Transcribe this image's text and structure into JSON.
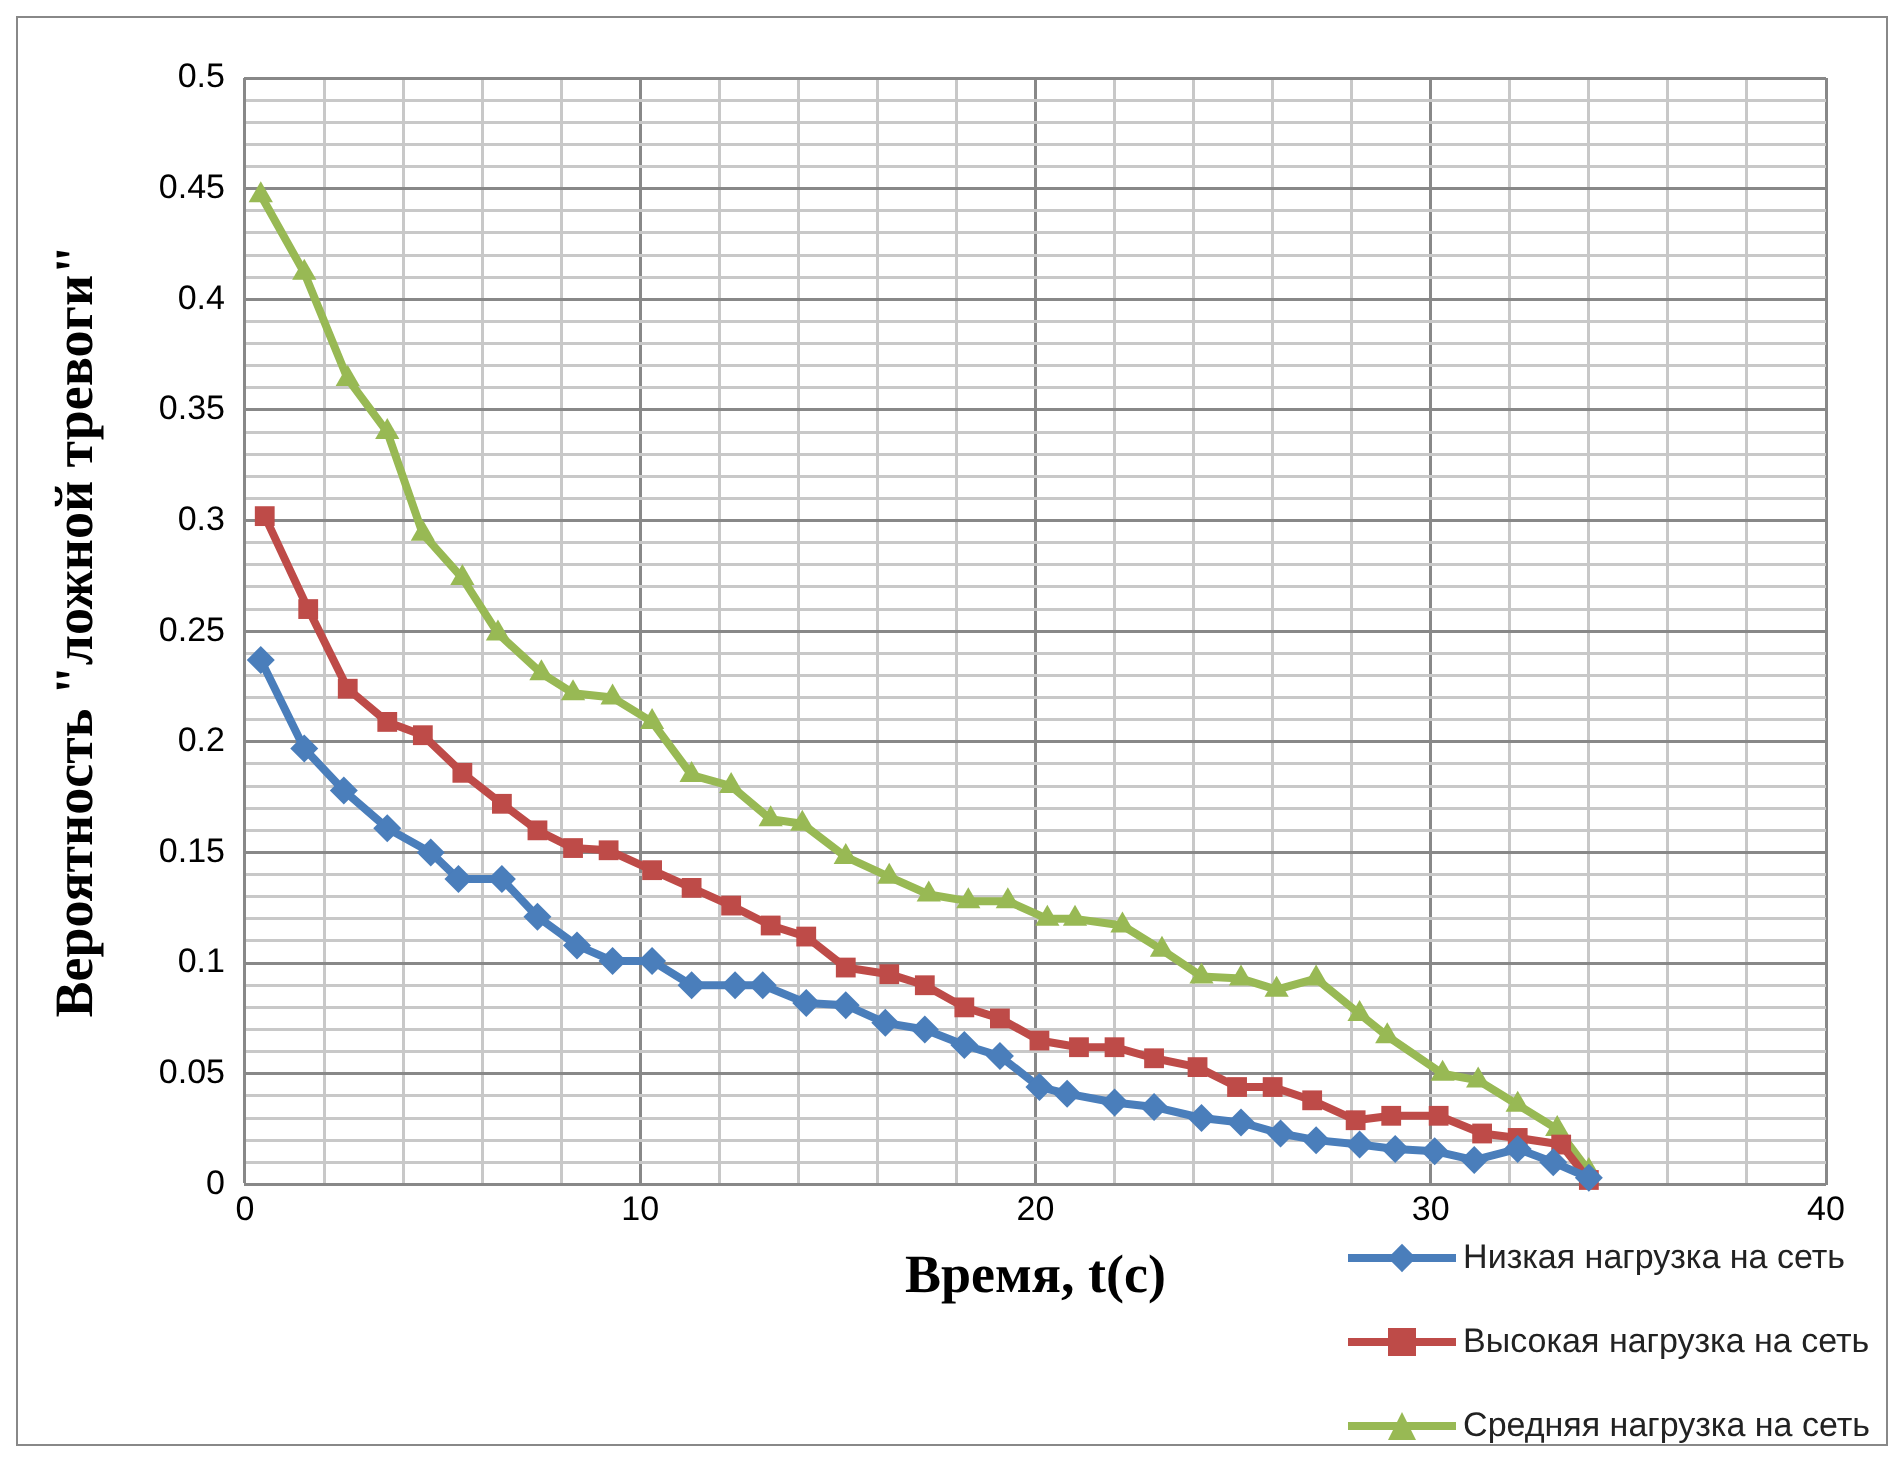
{
  "chart_data": {
    "type": "line",
    "xlabel": "Время, t(c)",
    "ylabel": "Вероятность \"ложной тревоги\"",
    "xlim": [
      0,
      40
    ],
    "xticks": [
      0,
      {
        "value": 2,
        "label": null
      },
      {
        "value": 4,
        "label": null
      },
      {
        "value": 6,
        "label": null
      },
      {
        "value": 8,
        "label": null
      },
      10,
      {
        "value": 12,
        "label": null
      },
      {
        "value": 14,
        "label": null
      },
      {
        "value": 16,
        "label": null
      },
      {
        "value": 18,
        "label": null
      },
      20,
      {
        "value": 22,
        "label": null
      },
      {
        "value": 24,
        "label": null
      },
      {
        "value": 26,
        "label": null
      },
      {
        "value": 28,
        "label": null
      },
      30,
      {
        "value": 32,
        "label": null
      },
      {
        "value": 34,
        "label": null
      },
      {
        "value": 36,
        "label": null
      },
      {
        "value": 38,
        "label": null
      },
      40
    ],
    "ylim": [
      0,
      0.5
    ],
    "yticks": [
      0,
      {
        "value": 0.01,
        "label": null
      },
      {
        "value": 0.02,
        "label": null
      },
      {
        "value": 0.03,
        "label": null
      },
      {
        "value": 0.04,
        "label": null
      },
      0.05,
      {
        "value": 0.06,
        "label": null
      },
      {
        "value": 0.07,
        "label": null
      },
      {
        "value": 0.08,
        "label": null
      },
      {
        "value": 0.09,
        "label": null
      },
      0.1,
      {
        "value": 0.11,
        "label": null
      },
      {
        "value": 0.12,
        "label": null
      },
      {
        "value": 0.13,
        "label": null
      },
      {
        "value": 0.14,
        "label": null
      },
      0.15,
      {
        "value": 0.16,
        "label": null
      },
      {
        "value": 0.17,
        "label": null
      },
      {
        "value": 0.18,
        "label": null
      },
      {
        "value": 0.19,
        "label": null
      },
      0.2,
      {
        "value": 0.21,
        "label": null
      },
      {
        "value": 0.22,
        "label": null
      },
      {
        "value": 0.23,
        "label": null
      },
      {
        "value": 0.24,
        "label": null
      },
      0.25,
      {
        "value": 0.26,
        "label": null
      },
      {
        "value": 0.27,
        "label": null
      },
      {
        "value": 0.28,
        "label": null
      },
      {
        "value": 0.29,
        "label": null
      },
      0.3,
      {
        "value": 0.31,
        "label": null
      },
      {
        "value": 0.32,
        "label": null
      },
      {
        "value": 0.33,
        "label": null
      },
      {
        "value": 0.34,
        "label": null
      },
      0.35,
      {
        "value": 0.36,
        "label": null
      },
      {
        "value": 0.37,
        "label": null
      },
      {
        "value": 0.38,
        "label": null
      },
      {
        "value": 0.39,
        "label": null
      },
      0.4,
      {
        "value": 0.41,
        "label": null
      },
      {
        "value": 0.42,
        "label": null
      },
      {
        "value": 0.43,
        "label": null
      },
      {
        "value": 0.44,
        "label": null
      },
      0.45,
      {
        "value": 0.46,
        "label": null
      },
      {
        "value": 0.47,
        "label": null
      },
      {
        "value": 0.48,
        "label": null
      },
      {
        "value": 0.49,
        "label": null
      },
      0.5
    ],
    "grid": true,
    "legend": "bottom right",
    "line_style": "solid",
    "series": [
      {
        "name": "Низкая нагрузка на сеть",
        "color": "#4a7ebb",
        "marker": "diamond",
        "x": [
          0.4,
          1.5,
          2.5,
          3.6,
          4.7,
          5.4,
          6.5,
          7.4,
          8.4,
          9.3,
          10.3,
          11.3,
          12.4,
          13.1,
          14.2,
          15.2,
          16.2,
          17.2,
          18.2,
          19.1,
          20.1,
          20.8,
          22.0,
          23.0,
          24.2,
          25.2,
          26.2,
          27.1,
          28.2,
          29.1,
          30.1,
          31.1,
          32.2,
          33.1,
          34.0
        ],
        "values": [
          0.237,
          0.197,
          0.178,
          0.161,
          0.15,
          0.138,
          0.138,
          0.121,
          0.108,
          0.101,
          0.101,
          0.09,
          0.09,
          0.09,
          0.082,
          0.081,
          0.073,
          0.07,
          0.063,
          0.058,
          0.044,
          0.041,
          0.037,
          0.035,
          0.03,
          0.028,
          0.023,
          0.02,
          0.018,
          0.016,
          0.015,
          0.011,
          0.016,
          0.01,
          0.003
        ]
      },
      {
        "name": "Высокая нагрузка на сеть",
        "color": "#be4b48",
        "marker": "square",
        "x": [
          0.5,
          1.6,
          2.6,
          3.6,
          4.5,
          5.5,
          6.5,
          7.4,
          8.3,
          9.2,
          10.3,
          11.3,
          12.3,
          13.3,
          14.2,
          15.2,
          16.3,
          17.2,
          18.2,
          19.1,
          20.1,
          21.1,
          22.0,
          23.0,
          24.1,
          25.1,
          26.0,
          27.0,
          28.1,
          29.0,
          30.2,
          31.3,
          32.2,
          33.3,
          34.0
        ],
        "values": [
          0.302,
          0.26,
          0.224,
          0.209,
          0.203,
          0.186,
          0.172,
          0.16,
          0.152,
          0.151,
          0.142,
          0.134,
          0.126,
          0.117,
          0.112,
          0.098,
          0.095,
          0.09,
          0.08,
          0.075,
          0.065,
          0.062,
          0.062,
          0.057,
          0.053,
          0.044,
          0.044,
          0.038,
          0.029,
          0.031,
          0.031,
          0.023,
          0.021,
          0.018,
          0.002
        ]
      },
      {
        "name": "Средняя нагрузка на сеть",
        "color": "#98b954",
        "marker": "triangle",
        "x": [
          0.4,
          1.5,
          2.6,
          3.6,
          4.5,
          5.5,
          6.4,
          7.5,
          8.3,
          9.3,
          10.3,
          11.3,
          12.3,
          13.3,
          14.1,
          15.2,
          16.3,
          17.3,
          18.3,
          19.3,
          20.3,
          21.0,
          22.2,
          23.2,
          24.2,
          25.2,
          26.1,
          27.1,
          28.2,
          28.9,
          30.3,
          31.2,
          32.2,
          33.2,
          34.0
        ],
        "values": [
          0.447,
          0.412,
          0.364,
          0.34,
          0.294,
          0.274,
          0.249,
          0.231,
          0.222,
          0.22,
          0.209,
          0.185,
          0.18,
          0.165,
          0.163,
          0.148,
          0.139,
          0.131,
          0.128,
          0.128,
          0.12,
          0.12,
          0.117,
          0.106,
          0.094,
          0.093,
          0.088,
          0.093,
          0.077,
          0.067,
          0.05,
          0.047,
          0.036,
          0.025,
          0.006
        ]
      }
    ]
  }
}
